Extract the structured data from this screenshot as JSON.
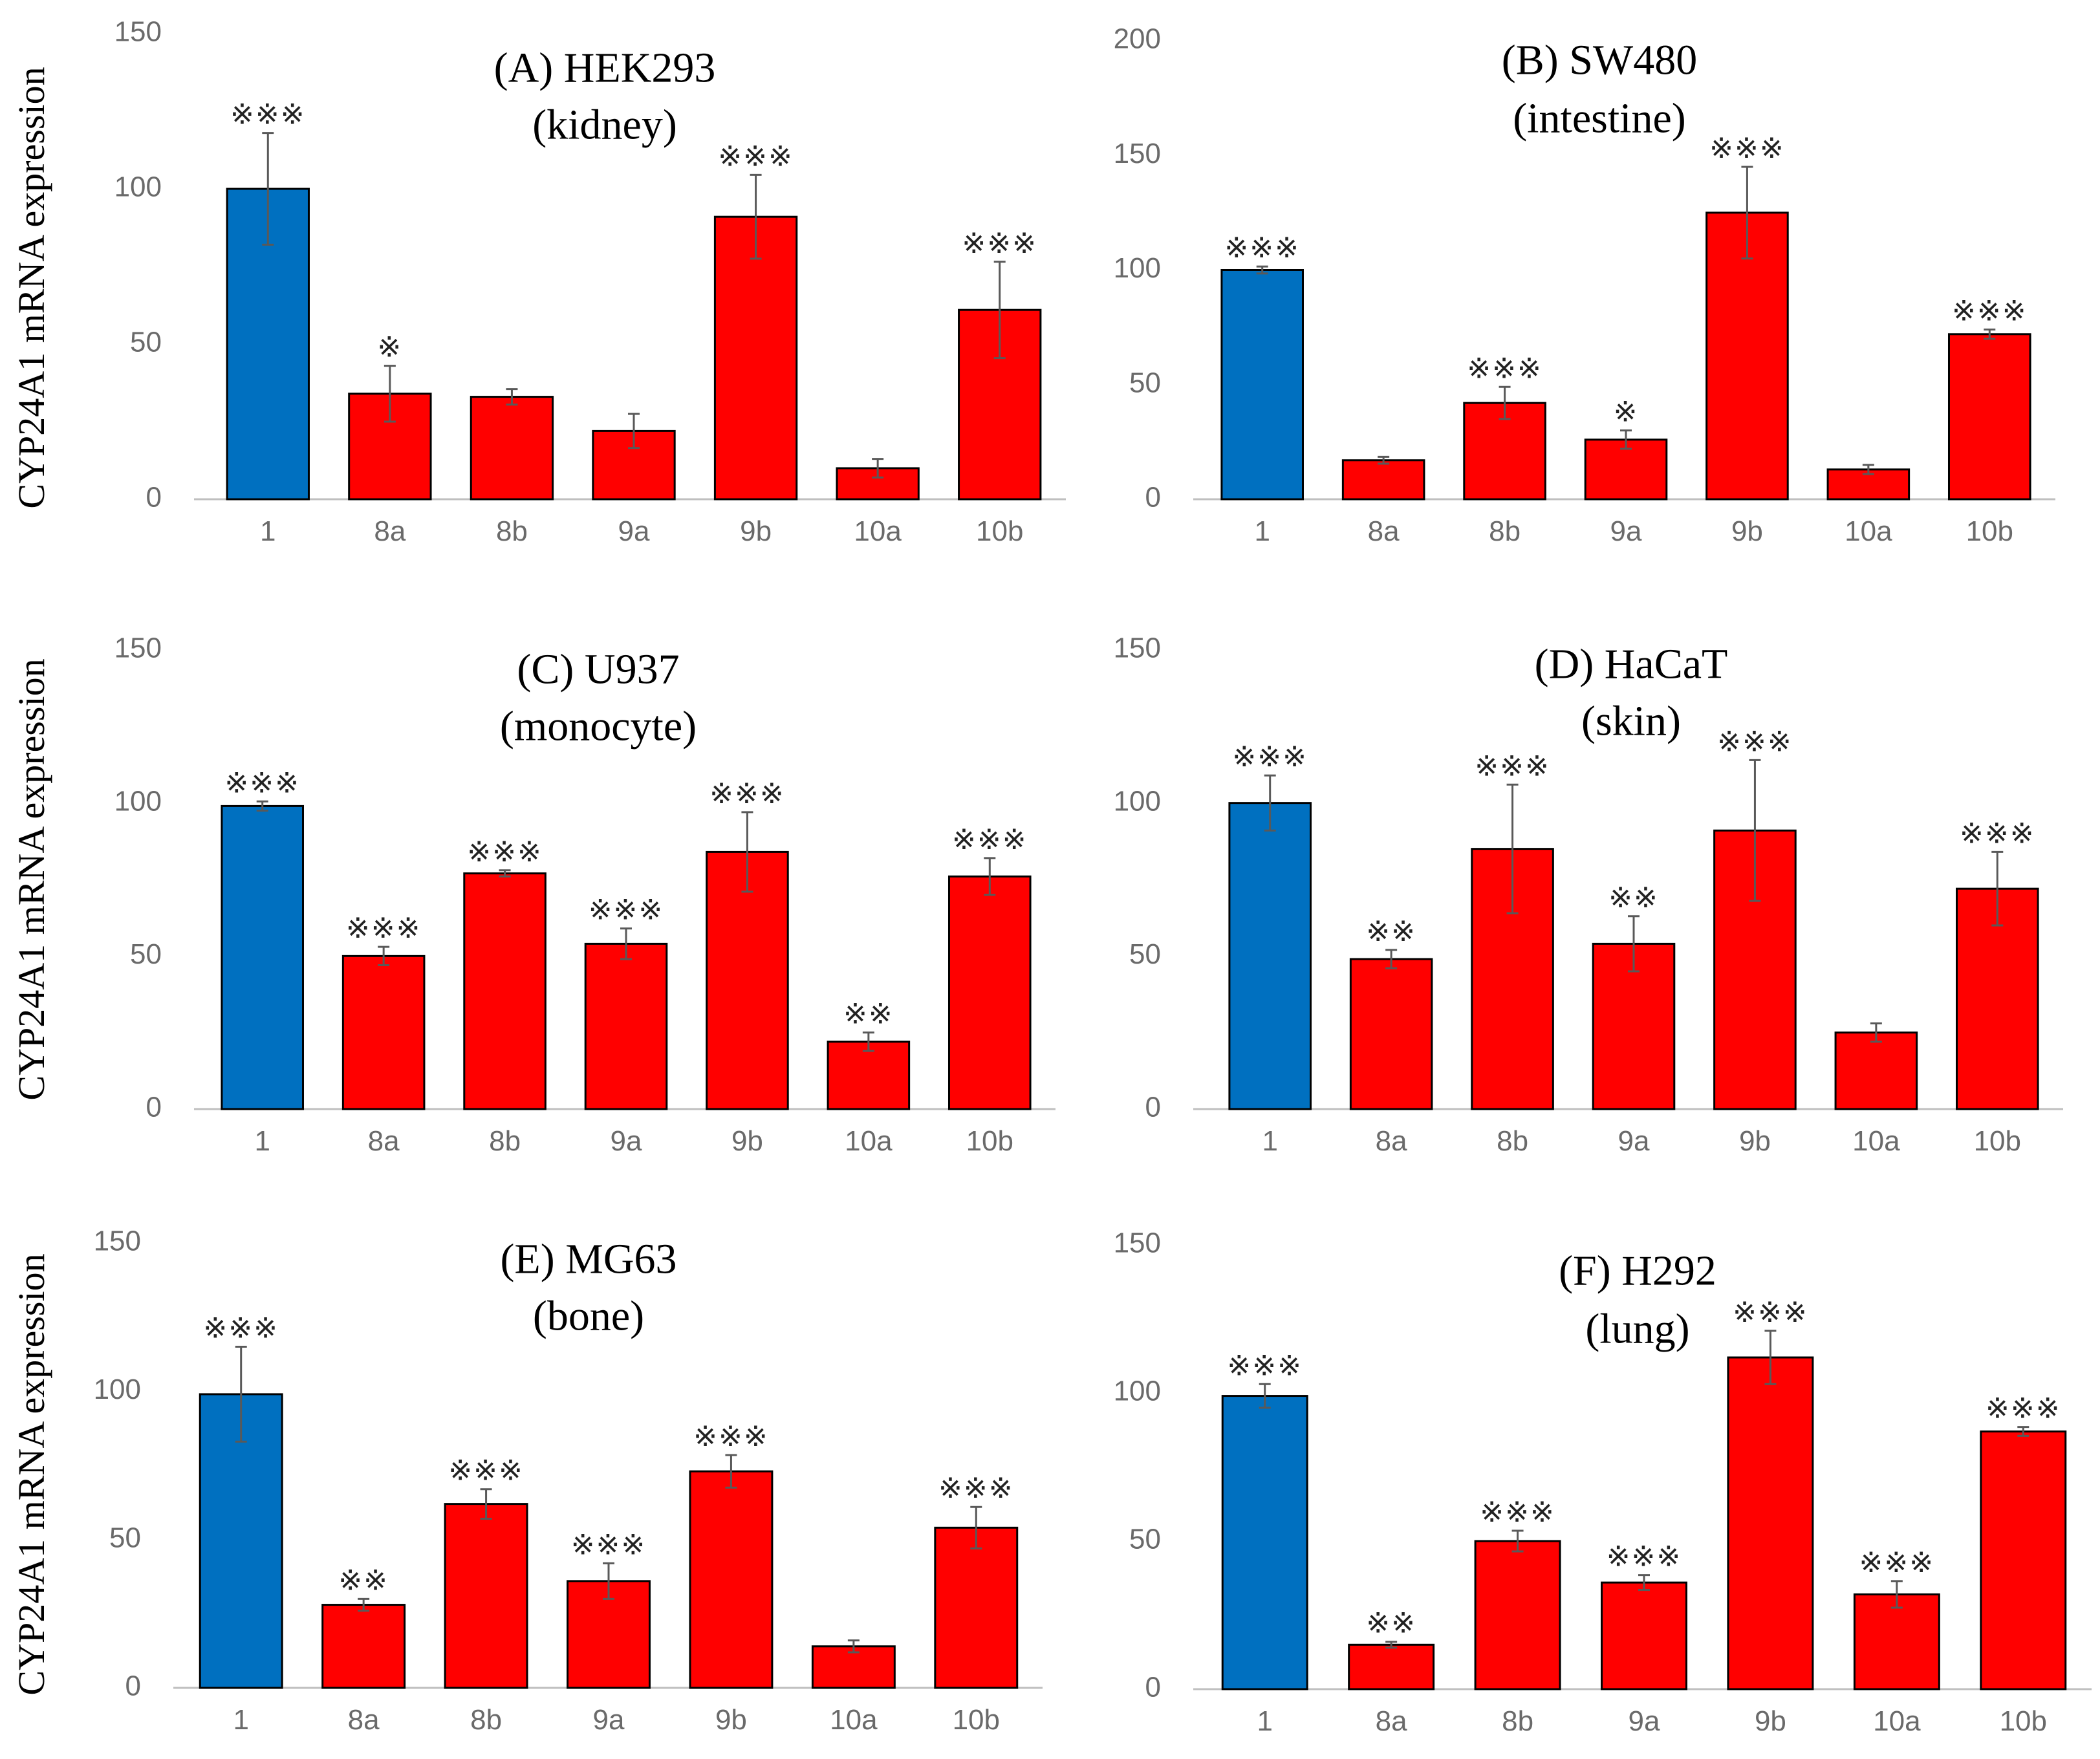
{
  "figure": {
    "ylabel": "CYP24A1 mRNA expression",
    "colors": {
      "control": "#0070c0",
      "compound": "#ff0000",
      "outline": "#000000",
      "axis": "#bfbfbf",
      "error": "#595959"
    }
  },
  "chart_data": [
    {
      "type": "bar",
      "title": "(A) HEK293",
      "subtitle": "(kidney)",
      "ylabel": "CYP24A1 mRNA expression",
      "ylim": [
        0,
        150
      ],
      "yticks": [
        "0",
        "50",
        "100",
        "150"
      ],
      "categories": [
        "1",
        "8a",
        "8b",
        "9a",
        "9b",
        "10a",
        "10b"
      ],
      "values": [
        100,
        34,
        33,
        22,
        91,
        10,
        61
      ],
      "errors": [
        18,
        9,
        2.5,
        5.5,
        13.5,
        3,
        15.5
      ],
      "significance": [
        "※※※",
        "※",
        "",
        "",
        "※※※",
        "",
        "※※※"
      ]
    },
    {
      "type": "bar",
      "title": "(B) SW480",
      "subtitle": "(intestine)",
      "ylabel": "",
      "ylim": [
        0,
        200
      ],
      "yticks": [
        "0",
        "50",
        "100",
        "150",
        "200"
      ],
      "categories": [
        "1",
        "8a",
        "8b",
        "9a",
        "9b",
        "10a",
        "10b"
      ],
      "values": [
        100,
        17,
        42,
        26,
        125,
        13,
        72
      ],
      "errors": [
        1.5,
        1.5,
        7,
        4,
        20,
        2,
        2
      ],
      "significance": [
        "※※※",
        "",
        "※※※",
        "※",
        "※※※",
        "",
        "※※※"
      ]
    },
    {
      "type": "bar",
      "title": "(C) U937",
      "subtitle": "(monocyte)",
      "ylabel": "CYP24A1 mRNA expression",
      "ylim": [
        0,
        150
      ],
      "yticks": [
        "0",
        "50",
        "100",
        "150"
      ],
      "categories": [
        "1",
        "8a",
        "8b",
        "9a",
        "9b",
        "10a",
        "10b"
      ],
      "values": [
        99,
        50,
        77,
        54,
        84,
        22,
        76
      ],
      "errors": [
        1.5,
        3,
        1,
        5,
        13,
        3,
        6
      ],
      "significance": [
        "※※※",
        "※※※",
        "※※※",
        "※※※",
        "※※※",
        "※※",
        "※※※"
      ]
    },
    {
      "type": "bar",
      "title": "(D) HaCaT",
      "subtitle": "(skin)",
      "ylabel": "",
      "ylim": [
        0,
        150
      ],
      "yticks": [
        "0",
        "50",
        "100",
        "150"
      ],
      "categories": [
        "1",
        "8a",
        "8b",
        "9a",
        "9b",
        "10a",
        "10b"
      ],
      "values": [
        100,
        49,
        85,
        54,
        91,
        25,
        72
      ],
      "errors": [
        9,
        3,
        21,
        9,
        23,
        3,
        12
      ],
      "significance": [
        "※※※",
        "※※",
        "※※※",
        "※※",
        "※※※",
        "",
        "※※※"
      ]
    },
    {
      "type": "bar",
      "title": "(E) MG63",
      "subtitle": "(bone)",
      "ylabel": "CYP24A1 mRNA expression",
      "ylim": [
        0,
        150
      ],
      "yticks": [
        "0",
        "50",
        "100",
        "150"
      ],
      "categories": [
        "1",
        "8a",
        "8b",
        "9a",
        "9b",
        "10a",
        "10b"
      ],
      "values": [
        99,
        28,
        62,
        36,
        73,
        14,
        54
      ],
      "errors": [
        16,
        2,
        5,
        6,
        5.5,
        2,
        7
      ],
      "significance": [
        "※※※",
        "※※",
        "※※※",
        "※※※",
        "※※※",
        "",
        "※※※"
      ]
    },
    {
      "type": "bar",
      "title": "(F) H292",
      "subtitle": "(lung)",
      "ylabel": "",
      "ylim": [
        0,
        150
      ],
      "yticks": [
        "0",
        "50",
        "100",
        "150"
      ],
      "categories": [
        "1",
        "8a",
        "8b",
        "9a",
        "9b",
        "10a",
        "10b"
      ],
      "values": [
        99,
        15,
        50,
        36,
        112,
        32,
        87
      ],
      "errors": [
        4,
        1,
        3.5,
        2.5,
        9,
        4.5,
        1.5
      ],
      "significance": [
        "※※※",
        "※※",
        "※※※",
        "※※※",
        "※※※",
        "※※※",
        "※※※"
      ]
    }
  ]
}
